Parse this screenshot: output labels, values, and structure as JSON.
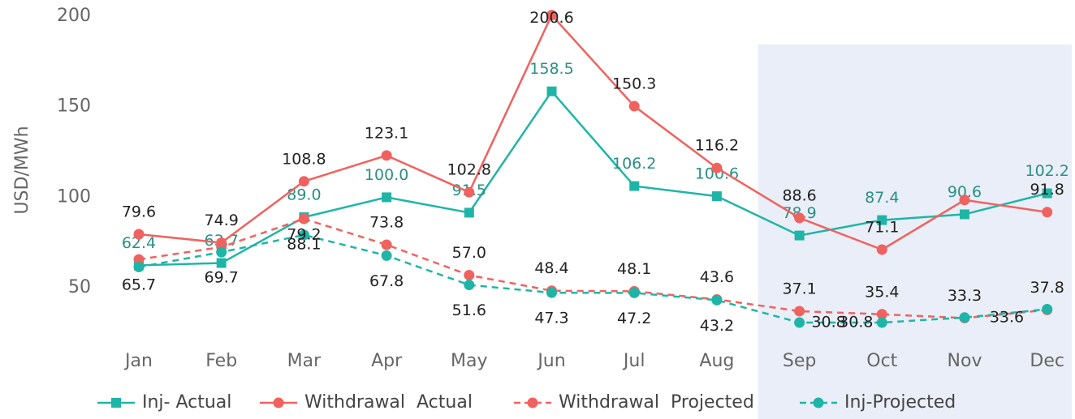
{
  "chart_data": {
    "type": "line",
    "y_label": "USD/MWh",
    "categories": [
      "Jan",
      "Feb",
      "Mar",
      "Apr",
      "May",
      "Jun",
      "Jul",
      "Aug",
      "Sep",
      "Oct",
      "Nov",
      "Dec"
    ],
    "ylim": [
      25,
      200
    ],
    "yticks": [
      50,
      100,
      150,
      200
    ],
    "highlight_start": "Sep",
    "highlight_color": "#e9eef8",
    "legend": "bottom",
    "series": [
      {
        "name": "Inj- Actual",
        "color": "#1fb5a6",
        "marker": "square",
        "dashed": false,
        "values": [
          62.4,
          63.7,
          89.0,
          100.0,
          91.5,
          158.5,
          106.2,
          100.6,
          78.9,
          87.4,
          90.6,
          102.2
        ],
        "value_labels": [
          "62.4",
          "63.7",
          "89.0",
          "100.0",
          "91.5",
          "158.5",
          "106.2",
          "100.6",
          "78.9",
          "87.4",
          "90.6",
          "102.2"
        ]
      },
      {
        "name": "Withdrawal  Actual",
        "color": "#f0625f",
        "marker": "circle",
        "dashed": false,
        "values": [
          79.6,
          74.9,
          108.8,
          123.1,
          102.8,
          200.6,
          150.3,
          116.2,
          88.6,
          71.1,
          98.5,
          91.8
        ],
        "value_labels": [
          "79.6",
          "74.9",
          "108.8",
          "123.1",
          "102.8",
          "200.6",
          "150.3",
          "116.2",
          "88.6",
          "71.1",
          null,
          "91.8"
        ]
      },
      {
        "name": "Withdrawal  Projected",
        "color": "#f0625f",
        "marker": "circle",
        "dashed": true,
        "values": [
          65.7,
          72.5,
          88.1,
          73.8,
          57.0,
          48.4,
          48.1,
          43.6,
          37.1,
          35.4,
          33.3,
          37.8
        ],
        "value_labels": [
          "65.7",
          null,
          "88.1",
          "73.8",
          "57.0",
          "48.4",
          "48.1",
          "43.6",
          "37.1",
          "35.4",
          "33.3",
          "37.8"
        ]
      },
      {
        "name": "Inj-Projected",
        "color": "#1fb5a6",
        "marker": "circle",
        "dashed": true,
        "values": [
          61.5,
          69.7,
          79.2,
          67.8,
          51.6,
          47.3,
          47.2,
          43.2,
          30.8,
          30.8,
          33.6,
          38.2
        ],
        "value_labels": [
          null,
          "69.7",
          "79.2",
          "67.8",
          "51.6",
          "47.3",
          "47.2",
          "43.2",
          "30.8",
          "30.8",
          "33.6",
          null
        ]
      }
    ]
  }
}
